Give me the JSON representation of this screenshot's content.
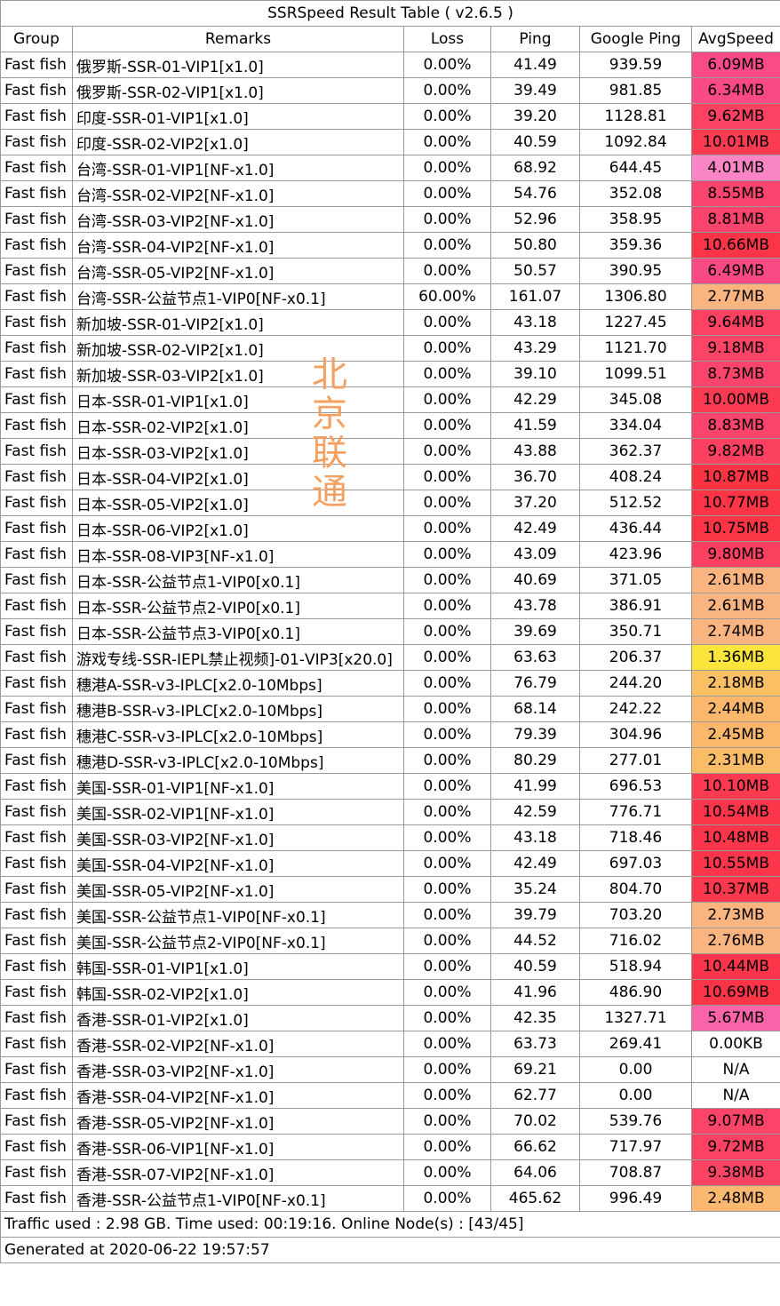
{
  "title": "SSRSpeed Result Table ( v2.6.5 )",
  "columns": [
    "Group",
    "Remarks",
    "Loss",
    "Ping",
    "Google Ping",
    "AvgSpeed"
  ],
  "rows": [
    {
      "group": "Fast fish",
      "remarks": "俄罗斯-SSR-01-VIP1[x1.0]",
      "loss": "0.00%",
      "ping": "41.49",
      "google_ping": "939.59",
      "avg_speed": "6.09MB",
      "color": "#fa4a88"
    },
    {
      "group": "Fast fish",
      "remarks": "俄罗斯-SSR-02-VIP1[x1.0]",
      "loss": "0.00%",
      "ping": "39.49",
      "google_ping": "981.85",
      "avg_speed": "6.34MB",
      "color": "#fa4a86"
    },
    {
      "group": "Fast fish",
      "remarks": "印度-SSR-01-VIP1[x1.0]",
      "loss": "0.00%",
      "ping": "39.20",
      "google_ping": "1128.81",
      "avg_speed": "9.62MB",
      "color": "#fb4262"
    },
    {
      "group": "Fast fish",
      "remarks": "印度-SSR-02-VIP2[x1.0]",
      "loss": "0.00%",
      "ping": "40.59",
      "google_ping": "1092.84",
      "avg_speed": "10.01MB",
      "color": "#fb3b52"
    },
    {
      "group": "Fast fish",
      "remarks": "台湾-SSR-01-VIP1[NF-x1.0]",
      "loss": "0.00%",
      "ping": "68.92",
      "google_ping": "644.45",
      "avg_speed": "4.01MB",
      "color": "#fb86c6"
    },
    {
      "group": "Fast fish",
      "remarks": "台湾-SSR-02-VIP2[NF-x1.0]",
      "loss": "0.00%",
      "ping": "54.76",
      "google_ping": "352.08",
      "avg_speed": "8.55MB",
      "color": "#fb446e"
    },
    {
      "group": "Fast fish",
      "remarks": "台湾-SSR-03-VIP2[NF-x1.0]",
      "loss": "0.00%",
      "ping": "52.96",
      "google_ping": "358.95",
      "avg_speed": "8.81MB",
      "color": "#fb446c"
    },
    {
      "group": "Fast fish",
      "remarks": "台湾-SSR-04-VIP2[NF-x1.0]",
      "loss": "0.00%",
      "ping": "50.80",
      "google_ping": "359.36",
      "avg_speed": "10.66MB",
      "color": "#fb3548"
    },
    {
      "group": "Fast fish",
      "remarks": "台湾-SSR-05-VIP2[NF-x1.0]",
      "loss": "0.00%",
      "ping": "50.57",
      "google_ping": "390.95",
      "avg_speed": "6.49MB",
      "color": "#fa4a86"
    },
    {
      "group": "Fast fish",
      "remarks": "台湾-SSR-公益节点1-VIP0[NF-x0.1]",
      "loss": "60.00%",
      "ping": "161.07",
      "google_ping": "1306.80",
      "avg_speed": "2.77MB",
      "color": "#fab480"
    },
    {
      "group": "Fast fish",
      "remarks": "新加坡-SSR-01-VIP2[x1.0]",
      "loss": "0.00%",
      "ping": "43.18",
      "google_ping": "1227.45",
      "avg_speed": "9.64MB",
      "color": "#fb4262"
    },
    {
      "group": "Fast fish",
      "remarks": "新加坡-SSR-02-VIP2[x1.0]",
      "loss": "0.00%",
      "ping": "43.29",
      "google_ping": "1121.70",
      "avg_speed": "9.18MB",
      "color": "#fb4466"
    },
    {
      "group": "Fast fish",
      "remarks": "新加坡-SSR-03-VIP2[x1.0]",
      "loss": "0.00%",
      "ping": "39.10",
      "google_ping": "1099.51",
      "avg_speed": "8.73MB",
      "color": "#fb446c"
    },
    {
      "group": "Fast fish",
      "remarks": "日本-SSR-01-VIP1[x1.0]",
      "loss": "0.00%",
      "ping": "42.29",
      "google_ping": "345.08",
      "avg_speed": "10.00MB",
      "color": "#fb3b52"
    },
    {
      "group": "Fast fish",
      "remarks": "日本-SSR-02-VIP2[x1.0]",
      "loss": "0.00%",
      "ping": "41.59",
      "google_ping": "334.04",
      "avg_speed": "8.83MB",
      "color": "#fb446c"
    },
    {
      "group": "Fast fish",
      "remarks": "日本-SSR-03-VIP2[x1.0]",
      "loss": "0.00%",
      "ping": "43.88",
      "google_ping": "362.37",
      "avg_speed": "9.82MB",
      "color": "#fb4060"
    },
    {
      "group": "Fast fish",
      "remarks": "日本-SSR-04-VIP2[x1.0]",
      "loss": "0.00%",
      "ping": "36.70",
      "google_ping": "408.24",
      "avg_speed": "10.87MB",
      "color": "#fb3444"
    },
    {
      "group": "Fast fish",
      "remarks": "日本-SSR-05-VIP2[x1.0]",
      "loss": "0.00%",
      "ping": "37.20",
      "google_ping": "512.52",
      "avg_speed": "10.77MB",
      "color": "#fb3446"
    },
    {
      "group": "Fast fish",
      "remarks": "日本-SSR-06-VIP2[x1.0]",
      "loss": "0.00%",
      "ping": "42.49",
      "google_ping": "436.44",
      "avg_speed": "10.75MB",
      "color": "#fb3446"
    },
    {
      "group": "Fast fish",
      "remarks": "日本-SSR-08-VIP3[NF-x1.0]",
      "loss": "0.00%",
      "ping": "43.09",
      "google_ping": "423.96",
      "avg_speed": "9.80MB",
      "color": "#fb4060"
    },
    {
      "group": "Fast fish",
      "remarks": "日本-SSR-公益节点1-VIP0[x0.1]",
      "loss": "0.00%",
      "ping": "40.69",
      "google_ping": "371.05",
      "avg_speed": "2.61MB",
      "color": "#fab480"
    },
    {
      "group": "Fast fish",
      "remarks": "日本-SSR-公益节点2-VIP0[x0.1]",
      "loss": "0.00%",
      "ping": "43.78",
      "google_ping": "386.91",
      "avg_speed": "2.61MB",
      "color": "#fab480"
    },
    {
      "group": "Fast fish",
      "remarks": "日本-SSR-公益节点3-VIP0[x0.1]",
      "loss": "0.00%",
      "ping": "39.69",
      "google_ping": "350.71",
      "avg_speed": "2.74MB",
      "color": "#fab480"
    },
    {
      "group": "Fast fish",
      "remarks": "游戏专线-SSR-IEPL禁止视频]-01-VIP3[x20.0]",
      "loss": "0.00%",
      "ping": "63.63",
      "google_ping": "206.37",
      "avg_speed": "1.36MB",
      "color": "#fbe43c"
    },
    {
      "group": "Fast fish",
      "remarks": "穗港A-SSR-v3-IPLC[x2.0-10Mbps]",
      "loss": "0.00%",
      "ping": "76.79",
      "google_ping": "244.20",
      "avg_speed": "2.18MB",
      "color": "#fbc064"
    },
    {
      "group": "Fast fish",
      "remarks": "穗港B-SSR-v3-IPLC[x2.0-10Mbps]",
      "loss": "0.00%",
      "ping": "68.14",
      "google_ping": "242.22",
      "avg_speed": "2.44MB",
      "color": "#fbb86c"
    },
    {
      "group": "Fast fish",
      "remarks": "穗港C-SSR-v3-IPLC[x2.0-10Mbps]",
      "loss": "0.00%",
      "ping": "79.39",
      "google_ping": "304.96",
      "avg_speed": "2.45MB",
      "color": "#fbb86c"
    },
    {
      "group": "Fast fish",
      "remarks": "穗港D-SSR-v3-IPLC[x2.0-10Mbps]",
      "loss": "0.00%",
      "ping": "80.29",
      "google_ping": "277.01",
      "avg_speed": "2.31MB",
      "color": "#fbbc68"
    },
    {
      "group": "Fast fish",
      "remarks": "美国-SSR-01-VIP1[NF-x1.0]",
      "loss": "0.00%",
      "ping": "41.99",
      "google_ping": "696.53",
      "avg_speed": "10.10MB",
      "color": "#fb3a50"
    },
    {
      "group": "Fast fish",
      "remarks": "美国-SSR-02-VIP1[NF-x1.0]",
      "loss": "0.00%",
      "ping": "42.59",
      "google_ping": "776.71",
      "avg_speed": "10.54MB",
      "color": "#fb364a"
    },
    {
      "group": "Fast fish",
      "remarks": "美国-SSR-03-VIP2[NF-x1.0]",
      "loss": "0.00%",
      "ping": "43.18",
      "google_ping": "718.46",
      "avg_speed": "10.48MB",
      "color": "#fb364a"
    },
    {
      "group": "Fast fish",
      "remarks": "美国-SSR-04-VIP2[NF-x1.0]",
      "loss": "0.00%",
      "ping": "42.49",
      "google_ping": "697.03",
      "avg_speed": "10.55MB",
      "color": "#fb364a"
    },
    {
      "group": "Fast fish",
      "remarks": "美国-SSR-05-VIP2[NF-x1.0]",
      "loss": "0.00%",
      "ping": "35.24",
      "google_ping": "804.70",
      "avg_speed": "10.37MB",
      "color": "#fb384c"
    },
    {
      "group": "Fast fish",
      "remarks": "美国-SSR-公益节点1-VIP0[NF-x0.1]",
      "loss": "0.00%",
      "ping": "39.79",
      "google_ping": "703.20",
      "avg_speed": "2.73MB",
      "color": "#fab480"
    },
    {
      "group": "Fast fish",
      "remarks": "美国-SSR-公益节点2-VIP0[NF-x0.1]",
      "loss": "0.00%",
      "ping": "44.52",
      "google_ping": "716.02",
      "avg_speed": "2.76MB",
      "color": "#fab480"
    },
    {
      "group": "Fast fish",
      "remarks": "韩国-SSR-01-VIP1[x1.0]",
      "loss": "0.00%",
      "ping": "40.59",
      "google_ping": "518.94",
      "avg_speed": "10.44MB",
      "color": "#fb364a"
    },
    {
      "group": "Fast fish",
      "remarks": "韩国-SSR-02-VIP2[x1.0]",
      "loss": "0.00%",
      "ping": "41.96",
      "google_ping": "486.90",
      "avg_speed": "10.69MB",
      "color": "#fb3548"
    },
    {
      "group": "Fast fish",
      "remarks": "香港-SSR-01-VIP2[x1.0]",
      "loss": "0.00%",
      "ping": "42.35",
      "google_ping": "1327.71",
      "avg_speed": "5.67MB",
      "color": "#fa64a8"
    },
    {
      "group": "Fast fish",
      "remarks": "香港-SSR-02-VIP2[NF-x1.0]",
      "loss": "0.00%",
      "ping": "63.73",
      "google_ping": "269.41",
      "avg_speed": "0.00KB",
      "color": "#ffffff"
    },
    {
      "group": "Fast fish",
      "remarks": "香港-SSR-03-VIP2[NF-x1.0]",
      "loss": "0.00%",
      "ping": "69.21",
      "google_ping": "0.00",
      "avg_speed": "N/A",
      "color": "#ffffff"
    },
    {
      "group": "Fast fish",
      "remarks": "香港-SSR-04-VIP2[NF-x1.0]",
      "loss": "0.00%",
      "ping": "62.77",
      "google_ping": "0.00",
      "avg_speed": "N/A",
      "color": "#ffffff"
    },
    {
      "group": "Fast fish",
      "remarks": "香港-SSR-05-VIP2[NF-x1.0]",
      "loss": "0.00%",
      "ping": "70.02",
      "google_ping": "539.76",
      "avg_speed": "9.07MB",
      "color": "#fb4468"
    },
    {
      "group": "Fast fish",
      "remarks": "香港-SSR-06-VIP1[NF-x1.0]",
      "loss": "0.00%",
      "ping": "66.62",
      "google_ping": "717.97",
      "avg_speed": "9.72MB",
      "color": "#fb4262"
    },
    {
      "group": "Fast fish",
      "remarks": "香港-SSR-07-VIP2[NF-x1.0]",
      "loss": "0.00%",
      "ping": "64.06",
      "google_ping": "708.87",
      "avg_speed": "9.38MB",
      "color": "#fb4464"
    },
    {
      "group": "Fast fish",
      "remarks": "香港-SSR-公益节点1-VIP0[NF-x0.1]",
      "loss": "0.00%",
      "ping": "465.62",
      "google_ping": "996.49",
      "avg_speed": "2.48MB",
      "color": "#fbb870"
    }
  ],
  "footer": {
    "traffic": "Traffic used : 2.98 GB. Time used: 00:19:16. Online Node(s) : [43/45]",
    "generated": "Generated at 2020-06-22 19:57:57"
  },
  "watermark": [
    "北",
    "京",
    "联",
    "通"
  ]
}
